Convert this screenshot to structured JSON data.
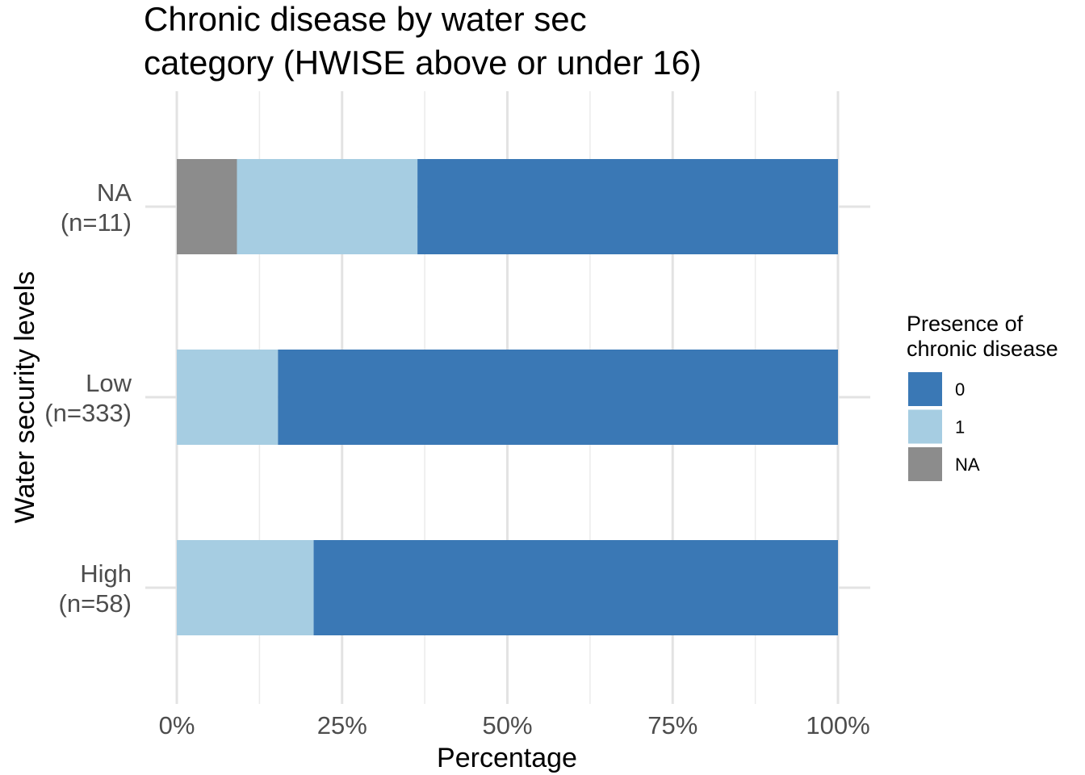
{
  "chart_data": {
    "type": "bar",
    "orientation": "horizontal",
    "stacked": "percent",
    "title_lines": [
      "Chronic disease by water sec",
      "category (HWISE above or under 16)"
    ],
    "xlabel": "Percentage",
    "ylabel": "Water security levels",
    "xlim": [
      0,
      100
    ],
    "x_ticks": [
      0,
      25,
      50,
      75,
      100
    ],
    "x_tick_labels": [
      "0%",
      "25%",
      "50%",
      "75%",
      "100%"
    ],
    "grid": true,
    "categories": [
      {
        "label_lines": [
          "NA",
          "(n=11)"
        ]
      },
      {
        "label_lines": [
          "Low",
          "(n=333)"
        ]
      },
      {
        "label_lines": [
          "High",
          "(n=58)"
        ]
      }
    ],
    "series": [
      {
        "name": "NA",
        "color": "#8c8c8c",
        "values": [
          9.1,
          0,
          0
        ]
      },
      {
        "name": "1",
        "color": "#a6cde2",
        "values": [
          27.3,
          15.3,
          20.7
        ]
      },
      {
        "name": "0",
        "color": "#3a78b5",
        "values": [
          63.6,
          84.7,
          79.3
        ]
      }
    ],
    "legend": {
      "title_lines": [
        "Presence of",
        "chronic disease"
      ],
      "placement": "right",
      "entries": [
        {
          "label": "0",
          "color": "#3a78b5"
        },
        {
          "label": "1",
          "color": "#a6cde2"
        },
        {
          "label": "NA",
          "color": "#8c8c8c"
        }
      ]
    }
  }
}
